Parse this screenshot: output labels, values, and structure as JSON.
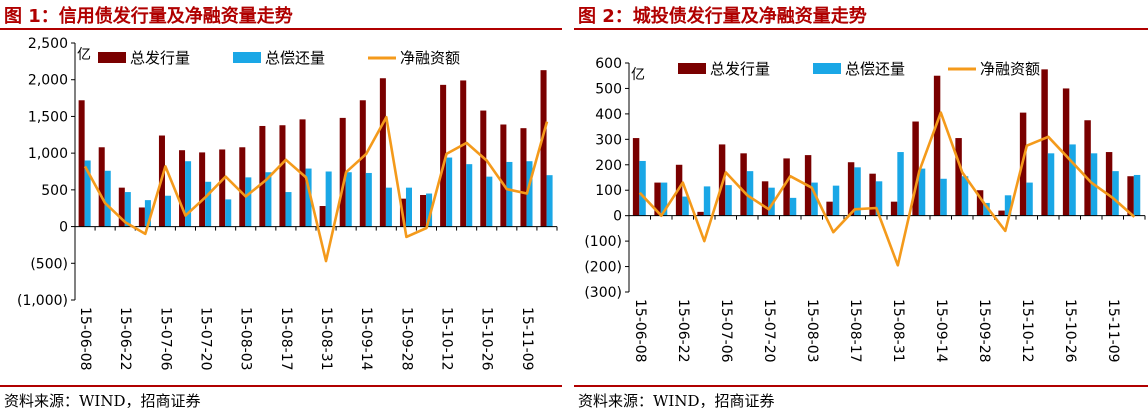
{
  "colors": {
    "issuance": "#7a0000",
    "repayment": "#1aa7e6",
    "net": "#f49a1b",
    "title": "#b00000"
  },
  "chart_data": [
    {
      "type": "bar",
      "title": "图 1：信用债发行量及净融资量走势",
      "source": "资料来源：WIND，招商证券",
      "unit": "亿",
      "ylim": [
        -1000,
        2500
      ],
      "yticks": [
        -1000,
        -500,
        0,
        500,
        1000,
        1500,
        2000,
        2500
      ],
      "ytick_labels": [
        "(1,000)",
        "(500)",
        "0",
        "500",
        "1,000",
        "1,500",
        "2,000",
        "2,500"
      ],
      "x_labels": [
        "15-06-08",
        "15-06-22",
        "15-07-06",
        "15-07-20",
        "15-08-03",
        "15-08-17",
        "15-08-31",
        "15-09-14",
        "15-09-28",
        "15-10-12",
        "15-10-26",
        "15-11-09"
      ],
      "legend": {
        "issuance": "总发行量",
        "repayment": "总偿还量",
        "net": "净融资额"
      },
      "series": [
        {
          "name": "总发行量",
          "type": "bar",
          "values": [
            1720,
            1080,
            530,
            260,
            1240,
            1040,
            1010,
            1050,
            1080,
            1370,
            1380,
            1460,
            280,
            1480,
            1720,
            2020,
            380,
            430,
            1930,
            1990,
            1580,
            1390,
            1340,
            2130
          ]
        },
        {
          "name": "总偿还量",
          "type": "bar",
          "values": [
            900,
            760,
            470,
            360,
            420,
            890,
            610,
            370,
            670,
            740,
            470,
            790,
            750,
            740,
            730,
            530,
            530,
            450,
            940,
            850,
            680,
            880,
            890,
            700
          ]
        },
        {
          "name": "净融资额",
          "type": "line",
          "values": [
            820,
            320,
            60,
            -100,
            820,
            150,
            400,
            680,
            410,
            630,
            910,
            670,
            -470,
            740,
            990,
            1490,
            -140,
            -20,
            990,
            1140,
            900,
            510,
            450,
            1430
          ]
        }
      ]
    },
    {
      "type": "bar",
      "title": "图 2：城投债发行量及净融资量走势",
      "source": "资料来源：WIND，招商证券",
      "unit": "亿",
      "ylim": [
        -300,
        600
      ],
      "yticks": [
        -300,
        -200,
        -100,
        0,
        100,
        200,
        300,
        400,
        500,
        600
      ],
      "ytick_labels": [
        "(300)",
        "(200)",
        "(100)",
        "0",
        "100",
        "200",
        "300",
        "400",
        "500",
        "600"
      ],
      "x_labels": [
        "15-06-08",
        "15-06-22",
        "15-07-06",
        "15-07-20",
        "15-08-03",
        "15-08-17",
        "15-08-31",
        "15-09-14",
        "15-09-28",
        "15-10-12",
        "15-10-26",
        "15-11-09"
      ],
      "legend": {
        "issuance": "总发行量",
        "repayment": "总偿还量",
        "net": "净融资额"
      },
      "series": [
        {
          "name": "总发行量",
          "type": "bar",
          "values": [
            305,
            130,
            200,
            15,
            280,
            245,
            135,
            225,
            238,
            55,
            210,
            165,
            55,
            370,
            550,
            305,
            100,
            20,
            405,
            575,
            500,
            375,
            250,
            155
          ]
        },
        {
          "name": "总偿还量",
          "type": "bar",
          "values": [
            215,
            130,
            75,
            115,
            120,
            175,
            110,
            70,
            130,
            118,
            190,
            135,
            250,
            185,
            145,
            155,
            50,
            80,
            130,
            245,
            280,
            245,
            175,
            160
          ]
        },
        {
          "name": "净融资额",
          "type": "line",
          "values": [
            90,
            0,
            130,
            -100,
            170,
            80,
            25,
            155,
            110,
            -65,
            25,
            30,
            -195,
            175,
            405,
            170,
            50,
            -60,
            275,
            310,
            220,
            130,
            70,
            -5
          ]
        }
      ]
    }
  ]
}
